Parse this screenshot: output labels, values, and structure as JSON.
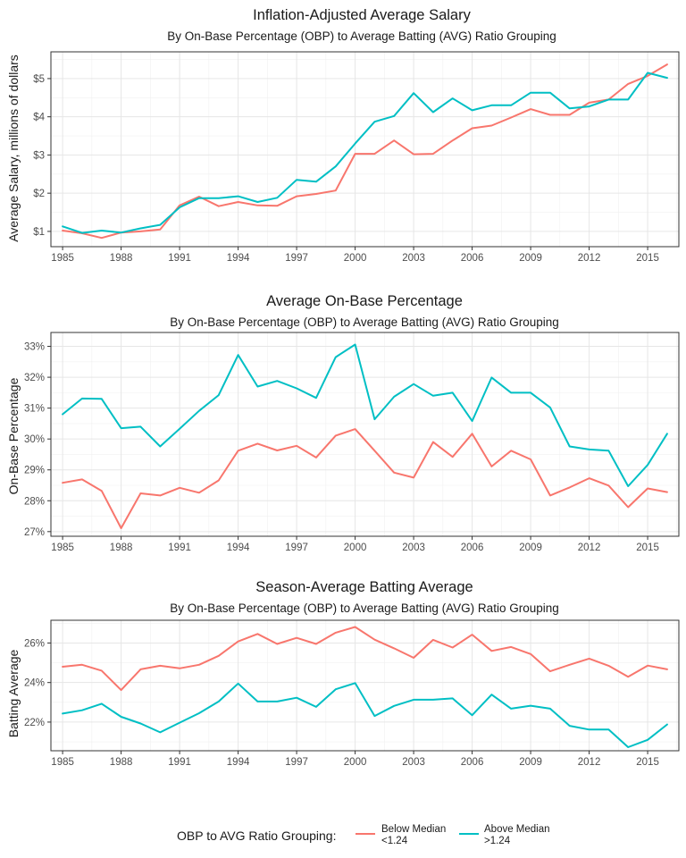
{
  "chart_data": [
    {
      "type": "line",
      "title": "Inflation-Adjusted Average Salary",
      "subtitle": "By On-Base Percentage (OBP) to Average Batting (AVG) Ratio Grouping",
      "xlabel": "",
      "ylabel": "Average Salary, millions of dollars",
      "xlim": [
        1984.4,
        2016.6
      ],
      "ylim": [
        0.6,
        5.7
      ],
      "x_ticks": [
        1985,
        1988,
        1991,
        1994,
        1997,
        2000,
        2003,
        2006,
        2009,
        2012,
        2015
      ],
      "y_ticks": [
        1,
        2,
        3,
        4,
        5
      ],
      "y_tick_labels": [
        "$1",
        "$2",
        "$3",
        "$4",
        "$5"
      ],
      "grid": true,
      "x": [
        1985,
        1986,
        1987,
        1988,
        1989,
        1990,
        1991,
        1992,
        1993,
        1994,
        1995,
        1996,
        1997,
        1998,
        1999,
        2000,
        2001,
        2002,
        2003,
        2004,
        2005,
        2006,
        2007,
        2008,
        2009,
        2010,
        2011,
        2012,
        2013,
        2014,
        2015,
        2016
      ],
      "series": [
        {
          "name": "Below Median\n<1.24",
          "color": "#F8766D",
          "values": [
            1.02,
            0.95,
            0.83,
            0.97,
            1.0,
            1.05,
            1.68,
            1.91,
            1.66,
            1.77,
            1.68,
            1.67,
            1.92,
            1.98,
            2.07,
            3.03,
            3.03,
            3.38,
            3.02,
            3.03,
            3.38,
            3.7,
            3.77,
            3.98,
            4.2,
            4.05,
            4.05,
            4.37,
            4.45,
            4.86,
            5.07,
            5.37
          ]
        },
        {
          "name": "Above Median\n>1.24",
          "color": "#00BFC4",
          "values": [
            1.13,
            0.96,
            1.02,
            0.97,
            1.08,
            1.17,
            1.63,
            1.87,
            1.87,
            1.92,
            1.77,
            1.88,
            2.35,
            2.3,
            2.7,
            3.3,
            3.87,
            4.02,
            4.62,
            4.12,
            4.48,
            4.17,
            4.3,
            4.3,
            4.63,
            4.63,
            4.22,
            4.27,
            4.45,
            4.45,
            5.15,
            5.02
          ]
        }
      ]
    },
    {
      "type": "line",
      "title": "Average On-Base Percentage",
      "subtitle": "By On-Base Percentage (OBP) to Average Batting (AVG) Ratio Grouping",
      "xlabel": "",
      "ylabel": "On-Base Percentage",
      "xlim": [
        1984.4,
        2016.6
      ],
      "ylim": [
        26.85,
        33.45
      ],
      "x_ticks": [
        1985,
        1988,
        1991,
        1994,
        1997,
        2000,
        2003,
        2006,
        2009,
        2012,
        2015
      ],
      "y_ticks": [
        27,
        28,
        29,
        30,
        31,
        32,
        33
      ],
      "y_tick_labels": [
        "27%",
        "28%",
        "29%",
        "30%",
        "31%",
        "32%",
        "33%"
      ],
      "grid": true,
      "x": [
        1985,
        1986,
        1987,
        1988,
        1989,
        1990,
        1991,
        1992,
        1993,
        1994,
        1995,
        1996,
        1997,
        1998,
        1999,
        2000,
        2001,
        2002,
        2003,
        2004,
        2005,
        2006,
        2007,
        2008,
        2009,
        2010,
        2011,
        2012,
        2013,
        2014,
        2015,
        2016
      ],
      "series": [
        {
          "name": "Below Median\n<1.24",
          "color": "#F8766D",
          "values": [
            28.58,
            28.69,
            28.32,
            27.11,
            28.24,
            28.17,
            28.42,
            28.26,
            28.66,
            29.62,
            29.85,
            29.63,
            29.78,
            29.4,
            30.11,
            30.32,
            29.62,
            28.91,
            28.75,
            29.9,
            29.42,
            30.17,
            29.11,
            29.62,
            29.34,
            28.17,
            28.43,
            28.73,
            28.49,
            27.79,
            28.4,
            28.28
          ]
        },
        {
          "name": "Above Median\n>1.24",
          "color": "#00BFC4",
          "values": [
            30.8,
            31.31,
            31.3,
            30.35,
            30.4,
            29.76,
            30.33,
            30.91,
            31.42,
            32.72,
            31.7,
            31.88,
            31.64,
            31.33,
            32.65,
            33.06,
            30.64,
            31.37,
            31.78,
            31.4,
            31.5,
            30.58,
            31.99,
            31.5,
            31.5,
            31.02,
            29.76,
            29.66,
            29.62,
            28.47,
            29.16,
            30.17
          ]
        }
      ]
    },
    {
      "type": "line",
      "title": "Season-Average Batting Average",
      "subtitle": "By On-Base Percentage (OBP) to Average Batting (AVG) Ratio Grouping",
      "xlabel": "",
      "ylabel": "Batting Average",
      "xlim": [
        1984.4,
        2016.6
      ],
      "ylim": [
        20.55,
        27.15
      ],
      "x_ticks": [
        1985,
        1988,
        1991,
        1994,
        1997,
        2000,
        2003,
        2006,
        2009,
        2012,
        2015
      ],
      "y_ticks": [
        22,
        24,
        26
      ],
      "y_tick_labels": [
        "22%",
        "24%",
        "26%"
      ],
      "grid": true,
      "x": [
        1985,
        1986,
        1987,
        1988,
        1989,
        1990,
        1991,
        1992,
        1993,
        1994,
        1995,
        1996,
        1997,
        1998,
        1999,
        2000,
        2001,
        2002,
        2003,
        2004,
        2005,
        2006,
        2007,
        2008,
        2009,
        2010,
        2011,
        2012,
        2013,
        2014,
        2015,
        2016
      ],
      "series": [
        {
          "name": "Below Median\n<1.24",
          "color": "#F8766D",
          "values": [
            24.8,
            24.9,
            24.6,
            23.62,
            24.67,
            24.85,
            24.72,
            24.9,
            25.35,
            26.08,
            26.46,
            25.95,
            26.26,
            25.95,
            26.52,
            26.81,
            26.17,
            25.73,
            25.25,
            26.16,
            25.77,
            26.42,
            25.6,
            25.8,
            25.44,
            24.57,
            24.9,
            25.21,
            24.85,
            24.29,
            24.86,
            24.67
          ]
        },
        {
          "name": "Above Median\n>1.24",
          "color": "#00BFC4",
          "values": [
            22.43,
            22.6,
            22.93,
            22.27,
            21.93,
            21.48,
            21.97,
            22.45,
            23.04,
            23.95,
            23.04,
            23.04,
            23.23,
            22.77,
            23.66,
            23.97,
            22.31,
            22.82,
            23.13,
            23.13,
            23.2,
            22.35,
            23.39,
            22.68,
            22.83,
            22.68,
            21.81,
            21.62,
            21.62,
            20.73,
            21.1,
            21.88
          ]
        }
      ]
    }
  ],
  "legend": {
    "title": "OBP to AVG Ratio Grouping:",
    "position": "bottom",
    "entries": [
      {
        "line1": "Below Median",
        "line2": "<1.24",
        "color": "#F8766D"
      },
      {
        "line1": "Above Median",
        "line2": ">1.24",
        "color": "#00BFC4"
      }
    ]
  }
}
